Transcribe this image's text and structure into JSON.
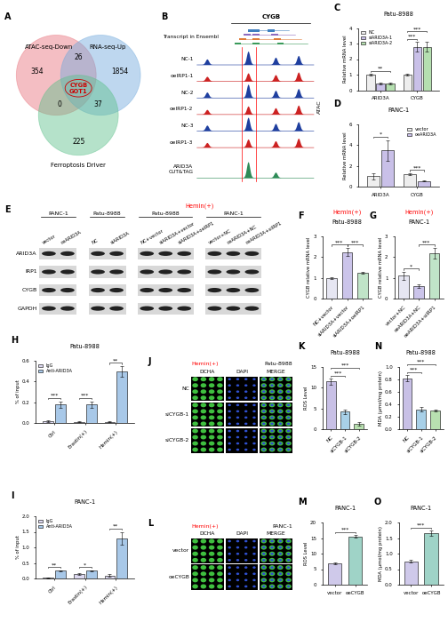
{
  "venn": {
    "label": "A",
    "sets": [
      {
        "name": "ATAC-seq-Down",
        "only": 354,
        "color": "#e8707a"
      },
      {
        "name": "RNA-seq-Up",
        "only": 1854,
        "color": "#6fa8dc"
      },
      {
        "name": "Ferroptosis Driver",
        "only": 225,
        "color": "#5cc08a"
      }
    ],
    "pairs": [
      {
        "sets": [
          0,
          1
        ],
        "count": 26
      },
      {
        "sets": [
          0,
          2
        ],
        "count": 0
      },
      {
        "sets": [
          1,
          2
        ],
        "count": 37
      }
    ],
    "center": [
      "CYGB",
      "GOT1"
    ]
  },
  "tracks": {
    "label": "B",
    "gene": "CYGB",
    "annotation": "Transcript in Ensembl",
    "group": "ATAC",
    "samples": [
      "NC-1",
      "oeIRP1-1",
      "NC-2",
      "oeIRP1-2",
      "NC-3",
      "oeIRP1-3"
    ],
    "cuttag": [
      "ARID3A",
      "CUT&TAG"
    ]
  },
  "blot": {
    "label": "E",
    "hemin_label": "Hemin(+)",
    "proteins": [
      "ARID3A",
      "IRP1",
      "CYGB",
      "GAPDH"
    ],
    "groups": [
      {
        "cell": "PANC-1",
        "hemin": false,
        "lanes": [
          "vector",
          "oeARID3A"
        ]
      },
      {
        "cell": "Patu-8988",
        "hemin": false,
        "lanes": [
          "NC",
          "siARID3A"
        ]
      },
      {
        "cell": "Patu-8988",
        "hemin": true,
        "lanes": [
          "NC+vector",
          "siARID3A+vector",
          "siARID3A+oeIRP1"
        ]
      },
      {
        "cell": "PANC-1",
        "hemin": true,
        "lanes": [
          "vector+NC",
          "oeARID3A+NC",
          "oeARID3A+siIRP1"
        ]
      }
    ]
  },
  "images": [
    {
      "label": "J",
      "cell": "Patu-8988",
      "condition": "Hemin(+)",
      "channels": [
        "DCHA",
        "DAPI",
        "MERGE"
      ],
      "rows": [
        "NC",
        "siCYGB-1",
        "siCYGB-2"
      ]
    },
    {
      "label": "L",
      "cell": "PANC-1",
      "condition": "Hemin(+)",
      "channels": [
        "DCHA",
        "DAPI",
        "MERGE"
      ],
      "rows": [
        "vector",
        "oeCYGB"
      ]
    }
  ],
  "chart_data": [
    {
      "type": "bar",
      "label": "C",
      "title": "Patu-8988",
      "ylabel": "Relative mRNA level",
      "categories": [
        "ARID3A",
        "CYGB"
      ],
      "series": [
        {
          "name": "NC",
          "color": "#eeeeee",
          "values": [
            1.0,
            1.0
          ],
          "errors": [
            0.05,
            0.05
          ]
        },
        {
          "name": "siARID3A-1",
          "color": "#c9c0e8",
          "values": [
            0.45,
            2.8
          ],
          "errors": [
            0.05,
            0.3
          ]
        },
        {
          "name": "siARID3A-2",
          "color": "#b5dfb0",
          "values": [
            0.42,
            2.8
          ],
          "errors": [
            0.05,
            0.3
          ]
        }
      ],
      "ylim": [
        0,
        4
      ],
      "yticks": [
        0,
        1,
        2,
        3,
        4
      ],
      "legend": "upper left",
      "annotations": [
        {
          "text": "**",
          "pair": [
            [
              0,
              0
            ],
            [
              0,
              2
            ]
          ]
        },
        {
          "text": "***",
          "pair": [
            [
              1,
              0
            ],
            [
              1,
              1
            ]
          ]
        },
        {
          "text": "***",
          "pair": [
            [
              1,
              0
            ],
            [
              1,
              2
            ]
          ]
        }
      ]
    },
    {
      "type": "bar",
      "label": "D",
      "title": "PANC-1",
      "ylabel": "Relative mRNA level",
      "categories": [
        "ARID3A",
        "CYGB"
      ],
      "series": [
        {
          "name": "vector",
          "color": "#eeeeee",
          "values": [
            1.0,
            1.2
          ],
          "errors": [
            0.3,
            0.1
          ]
        },
        {
          "name": "oeARID3A",
          "color": "#c9c0e8",
          "values": [
            3.5,
            0.55
          ],
          "errors": [
            1.0,
            0.05
          ]
        }
      ],
      "ylim": [
        0,
        6
      ],
      "yticks": [
        0,
        2,
        4,
        6
      ],
      "legend": "upper right",
      "annotations": [
        {
          "text": "*",
          "pair": [
            [
              0,
              0
            ],
            [
              0,
              1
            ]
          ]
        },
        {
          "text": "***",
          "pair": [
            [
              1,
              0
            ],
            [
              1,
              1
            ]
          ]
        }
      ]
    },
    {
      "type": "bar",
      "label": "F",
      "title": "Patu-8988",
      "subtitle": "Hemin(+)",
      "ylabel": "CYGB relative mRNA level",
      "categories": [
        "NC+vector",
        "siARID3A+vector",
        "siARID3A+oeIRP1"
      ],
      "series": [
        {
          "colors": [
            "#e6e6f2",
            "#cbc4ea",
            "#c0e4c8"
          ],
          "values": [
            1.0,
            2.25,
            1.25
          ],
          "errors": [
            0.05,
            0.2,
            0.05
          ]
        }
      ],
      "ylim": [
        0,
        3
      ],
      "yticks": [
        0,
        1,
        2,
        3
      ],
      "annotations": [
        {
          "text": "***",
          "pair": [
            [
              0,
              0
            ],
            [
              1,
              0
            ]
          ]
        },
        {
          "text": "***",
          "pair": [
            [
              1,
              0
            ],
            [
              2,
              0
            ]
          ]
        }
      ]
    },
    {
      "type": "bar",
      "label": "G",
      "title": "PANC-1",
      "subtitle": "Hemin(+)",
      "ylabel": "CYGB relative mRNA level",
      "categories": [
        "vector+NC",
        "oeARID3A+NC",
        "oeARID3A+siIRP1"
      ],
      "series": [
        {
          "colors": [
            "#e6e6f2",
            "#cbc4ea",
            "#c0e4c8"
          ],
          "values": [
            1.1,
            0.6,
            2.2
          ],
          "errors": [
            0.2,
            0.1,
            0.25
          ]
        }
      ],
      "ylim": [
        0,
        3
      ],
      "yticks": [
        0,
        1,
        2,
        3
      ],
      "annotations": [
        {
          "text": "*",
          "pair": [
            [
              0,
              0
            ],
            [
              1,
              0
            ]
          ]
        },
        {
          "text": "***",
          "pair": [
            [
              1,
              0
            ],
            [
              2,
              0
            ]
          ]
        }
      ]
    },
    {
      "type": "bar",
      "label": "H",
      "title": "Patu-8988",
      "ylabel": "% of input",
      "categories": [
        "Ctrl",
        "Erastin(+)",
        "Hemin(+)"
      ],
      "series": [
        {
          "name": "IgG",
          "color": "#dcd8f0",
          "values": [
            0.02,
            0.01,
            0.01
          ],
          "errors": [
            0.01,
            0.005,
            0.005
          ]
        },
        {
          "name": "Anti-ARID3A",
          "color": "#a8c8e8",
          "values": [
            0.18,
            0.18,
            0.5
          ],
          "errors": [
            0.03,
            0.03,
            0.05
          ]
        }
      ],
      "ylim": [
        0,
        0.6
      ],
      "yticks": [
        {
          "value": 0,
          "label": "0.0"
        },
        0.2,
        0.4,
        0.6
      ],
      "legend": "upper left",
      "annotations": [
        {
          "text": "***",
          "pair": [
            [
              0,
              0
            ],
            [
              0,
              1
            ]
          ]
        },
        {
          "text": "***",
          "pair": [
            [
              1,
              0
            ],
            [
              1,
              1
            ]
          ]
        },
        {
          "text": "**",
          "pair": [
            [
              2,
              0
            ],
            [
              2,
              1
            ]
          ]
        }
      ]
    },
    {
      "type": "bar",
      "label": "I",
      "title": "PANC-1",
      "ylabel": "% of input",
      "categories": [
        "Ctrl",
        "Erastin(+)",
        "Hemin(+)"
      ],
      "series": [
        {
          "name": "IgG",
          "color": "#dcd8f0",
          "values": [
            0.02,
            0.15,
            0.1
          ],
          "errors": [
            0.01,
            0.03,
            0.03
          ]
        },
        {
          "name": "Anti-ARID3A",
          "color": "#a8c8e8",
          "values": [
            0.25,
            0.25,
            1.3
          ],
          "errors": [
            0.02,
            0.02,
            0.2
          ]
        }
      ],
      "ylim": [
        0,
        2
      ],
      "yticks": [
        {
          "value": 0,
          "label": "0.0"
        },
        0.5,
        {
          "value": 1,
          "label": "1.0"
        },
        1.5,
        {
          "value": 2,
          "label": "2.0"
        }
      ],
      "legend": "upper left",
      "annotations": [
        {
          "text": "**",
          "pair": [
            [
              0,
              0
            ],
            [
              0,
              1
            ]
          ]
        },
        {
          "text": "*",
          "pair": [
            [
              1,
              0
            ],
            [
              1,
              1
            ]
          ]
        },
        {
          "text": "**",
          "pair": [
            [
              2,
              0
            ],
            [
              2,
              1
            ]
          ]
        }
      ]
    },
    {
      "type": "bar",
      "label": "K",
      "title": "Patu-8988",
      "ylabel": "ROS Level",
      "categories": [
        "NC",
        "siCYGB-1",
        "siCYGB-2"
      ],
      "series": [
        {
          "colors": [
            "#c8c0e6",
            "#a8d0e8",
            "#b8e0b0"
          ],
          "values": [
            11.5,
            4.2,
            1.3
          ],
          "errors": [
            0.7,
            0.5,
            0.4
          ]
        }
      ],
      "ylim": [
        0,
        15
      ],
      "yticks": [
        0,
        5,
        10,
        15
      ],
      "annotations": [
        {
          "text": "***",
          "pair": [
            [
              0,
              0
            ],
            [
              1,
              0
            ]
          ]
        },
        {
          "text": "***",
          "pair": [
            [
              0,
              0
            ],
            [
              2,
              0
            ]
          ]
        }
      ]
    },
    {
      "type": "bar",
      "label": "M",
      "title": "PANC-1",
      "ylabel": "ROS Level",
      "categories": [
        "vector",
        "oeCYGB"
      ],
      "series": [
        {
          "colors": [
            "#cfc9ea",
            "#9fd3c7"
          ],
          "values": [
            6.8,
            15.5
          ],
          "errors": [
            0.3,
            0.4
          ]
        }
      ],
      "ylim": [
        0,
        20
      ],
      "yticks": [
        0,
        5,
        10,
        15,
        20
      ],
      "annotations": [
        {
          "text": "***",
          "pair": [
            [
              0,
              0
            ],
            [
              1,
              0
            ]
          ]
        }
      ]
    },
    {
      "type": "bar",
      "label": "N",
      "title": "Patu-8988",
      "ylabel": "MDA (μmol/mg protein)",
      "categories": [
        "NC",
        "siCYGB-1",
        "siCYGB-2"
      ],
      "series": [
        {
          "colors": [
            "#c8c0e6",
            "#a8d0e8",
            "#b8e0b0"
          ],
          "values": [
            0.82,
            0.32,
            0.3
          ],
          "errors": [
            0.05,
            0.04,
            0.02
          ]
        }
      ],
      "ylim": [
        0,
        1
      ],
      "yticks": [
        {
          "value": 0,
          "label": "0.0"
        },
        0.2,
        0.4,
        0.6,
        0.8,
        {
          "value": 1,
          "label": "1.0"
        }
      ],
      "annotations": [
        {
          "text": "***",
          "pair": [
            [
              0,
              0
            ],
            [
              1,
              0
            ]
          ]
        },
        {
          "text": "***",
          "pair": [
            [
              0,
              0
            ],
            [
              2,
              0
            ]
          ]
        }
      ]
    },
    {
      "type": "bar",
      "label": "O",
      "title": "PANC-1",
      "ylabel": "MDA (μmol/mg protein)",
      "categories": [
        "vector",
        "oeCYGB"
      ],
      "series": [
        {
          "colors": [
            "#cfc9ea",
            "#9fd3c7"
          ],
          "values": [
            0.75,
            1.65
          ],
          "errors": [
            0.04,
            0.08
          ]
        }
      ],
      "ylim": [
        0,
        2
      ],
      "yticks": [
        {
          "value": 0,
          "label": "0.0"
        },
        0.5,
        {
          "value": 1,
          "label": "1.0"
        },
        1.5,
        {
          "value": 2,
          "label": "2.0"
        }
      ],
      "annotations": [
        {
          "text": "***",
          "pair": [
            [
              0,
              0
            ],
            [
              1,
              0
            ]
          ]
        }
      ]
    }
  ]
}
